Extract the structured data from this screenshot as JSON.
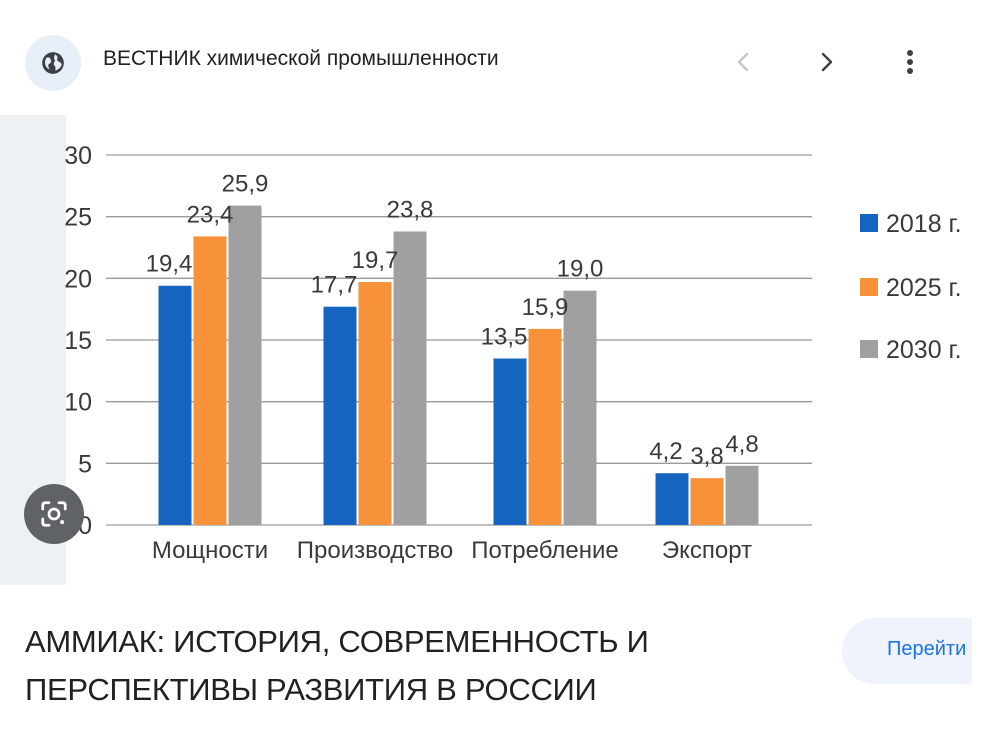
{
  "header": {
    "site_name": "ВЕСТНИК химической промышленности",
    "icons": {
      "site": "globe-icon",
      "prev": "chevron-left-icon",
      "next": "chevron-right-icon",
      "more": "more-vert-icon",
      "lens": "google-lens-icon"
    }
  },
  "chart_data": {
    "type": "bar",
    "categories": [
      "Мощности",
      "Производство",
      "Потребление",
      "Экспорт"
    ],
    "series": [
      {
        "name": "2018 г.",
        "values": [
          19.4,
          17.7,
          13.5,
          4.2
        ],
        "color": "#1565c0",
        "labels": [
          "19,4",
          "17,7",
          "13,5",
          "4,2"
        ]
      },
      {
        "name": "2025 г.",
        "values": [
          23.4,
          19.7,
          15.9,
          3.8
        ],
        "color": "#f7923a",
        "labels": [
          "23,4",
          "19,7",
          "15,9",
          "3,8"
        ]
      },
      {
        "name": "2030 г.",
        "values": [
          25.9,
          23.8,
          19.0,
          4.8
        ],
        "color": "#a0a0a0",
        "labels": [
          "25,9",
          "23,8",
          "19,0",
          "4,8"
        ]
      }
    ],
    "yticks": [
      "0",
      "5",
      "10",
      "15",
      "20",
      "25",
      "30"
    ],
    "ylim": [
      0,
      30
    ],
    "grid": true,
    "legend_position": "right"
  },
  "result": {
    "title_line1": "АММИАК: ИСТОРИЯ, СОВРЕМЕННОСТЬ И",
    "title_line2": "ПЕРСПЕКТИВЫ РАЗВИТИЯ В РОССИИ",
    "visit_label": "Перейти"
  }
}
